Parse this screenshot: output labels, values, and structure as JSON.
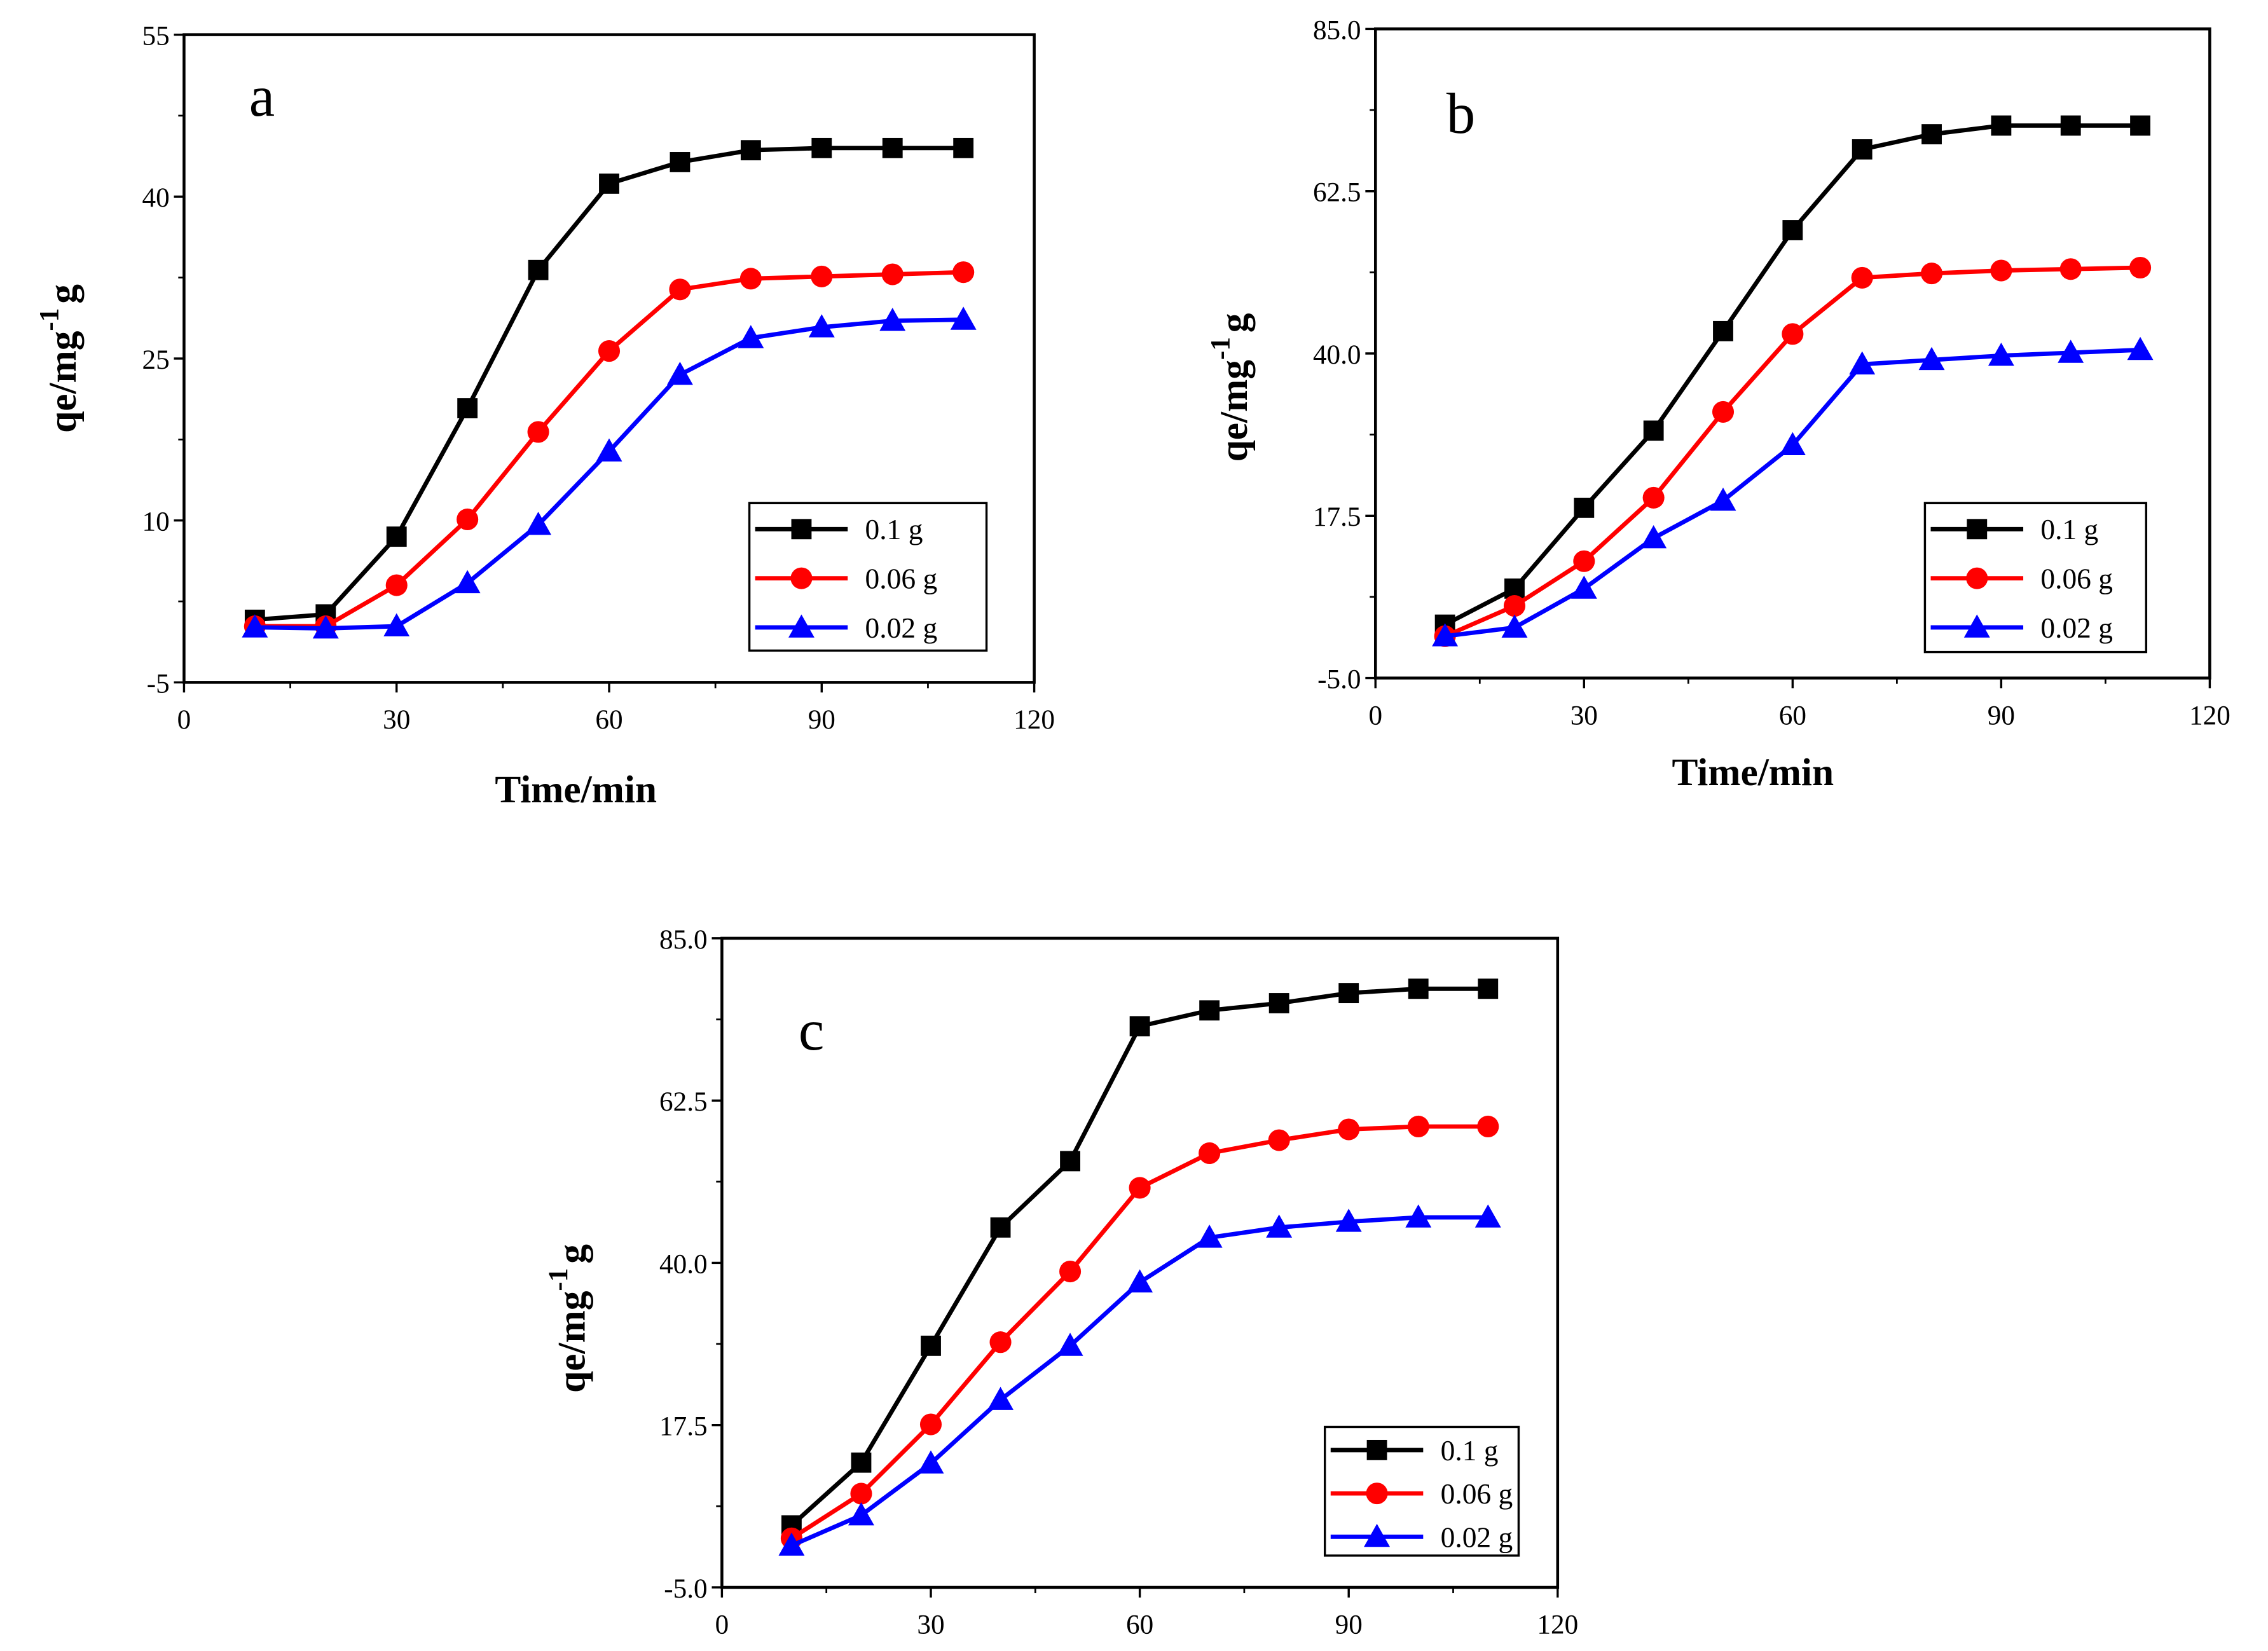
{
  "chart_data": [
    {
      "type": "line",
      "panel_label": "a",
      "xlabel": "Time/min",
      "ylabel": {
        "base": "qe/mg",
        "sup": "-1",
        "tail": "g"
      },
      "xlim": [
        0,
        120
      ],
      "ylim": [
        -5,
        55
      ],
      "xticks": [
        "0",
        "30",
        "60",
        "90",
        "120"
      ],
      "xtick_values": [
        0,
        30,
        60,
        90,
        120
      ],
      "yticks": [
        "-5",
        "10",
        "25",
        "40",
        "55"
      ],
      "ytick_values": [
        -5,
        10,
        25,
        40,
        55
      ],
      "legend_position": "bottom-right",
      "x": [
        10,
        20,
        30,
        40,
        50,
        60,
        70,
        80,
        90,
        100,
        110
      ],
      "series": [
        {
          "name": "0.1 g",
          "color": "#000000",
          "marker": "square",
          "values": [
            0.8,
            1.3,
            8.5,
            20.4,
            33.2,
            41.2,
            43.2,
            44.3,
            44.5,
            44.5,
            44.5
          ]
        },
        {
          "name": "0.06 g",
          "color": "#ff0000",
          "marker": "circle",
          "values": [
            0.2,
            0.2,
            4.0,
            10.1,
            18.2,
            25.7,
            31.4,
            32.4,
            32.6,
            32.8,
            33.0
          ]
        },
        {
          "name": "0.02 g",
          "color": "#0000ff",
          "marker": "triangle",
          "values": [
            0.1,
            0.0,
            0.2,
            4.2,
            9.6,
            16.4,
            23.5,
            26.9,
            27.9,
            28.5,
            28.6
          ]
        }
      ]
    },
    {
      "type": "line",
      "panel_label": "b",
      "xlabel": "Time/min",
      "ylabel": {
        "base": "qe/mg",
        "sup": "-1",
        "tail": "g"
      },
      "xlim": [
        0,
        120
      ],
      "ylim": [
        -5,
        85
      ],
      "xticks": [
        "0",
        "30",
        "60",
        "90",
        "120"
      ],
      "xtick_values": [
        0,
        30,
        60,
        90,
        120
      ],
      "yticks": [
        "-5.0",
        "17.5",
        "40.0",
        "62.5",
        "85.0"
      ],
      "ytick_values": [
        -5,
        17.5,
        40,
        62.5,
        85
      ],
      "legend_position": "bottom-right",
      "x": [
        10,
        20,
        30,
        40,
        50,
        60,
        70,
        80,
        90,
        100,
        110
      ],
      "series": [
        {
          "name": "0.1 g",
          "color": "#000000",
          "marker": "square",
          "values": [
            2.4,
            7.4,
            18.6,
            29.3,
            43.1,
            57.1,
            68.3,
            70.4,
            71.6,
            71.6,
            71.6
          ]
        },
        {
          "name": "0.06 g",
          "color": "#ff0000",
          "marker": "circle",
          "values": [
            0.8,
            5.0,
            11.2,
            20.0,
            31.9,
            42.7,
            50.5,
            51.1,
            51.5,
            51.7,
            51.9
          ]
        },
        {
          "name": "0.02 g",
          "color": "#0000ff",
          "marker": "triangle",
          "values": [
            0.8,
            2.0,
            7.4,
            14.4,
            19.6,
            27.3,
            38.5,
            39.1,
            39.7,
            40.1,
            40.5
          ]
        }
      ]
    },
    {
      "type": "line",
      "panel_label": "c",
      "xlabel": "",
      "ylabel": {
        "base": "qe/mg",
        "sup": "-1",
        "tail": "g"
      },
      "xlim": [
        0,
        120
      ],
      "ylim": [
        -5,
        85
      ],
      "xticks": [
        "0",
        "30",
        "60",
        "90",
        "120"
      ],
      "xtick_values": [
        0,
        30,
        60,
        90,
        120
      ],
      "yticks": [
        "-5.0",
        "17.5",
        "40.0",
        "62.5",
        "85.0"
      ],
      "ytick_values": [
        -5,
        17.5,
        40,
        62.5,
        85
      ],
      "legend_position": "bottom-right",
      "x": [
        10,
        20,
        30,
        40,
        50,
        60,
        70,
        80,
        90,
        100,
        110
      ],
      "series": [
        {
          "name": "0.1 g",
          "color": "#000000",
          "marker": "square",
          "values": [
            3.6,
            12.3,
            28.5,
            44.9,
            54.1,
            72.8,
            75.0,
            76.0,
            77.4,
            78.0,
            78.0
          ]
        },
        {
          "name": "0.06 g",
          "color": "#ff0000",
          "marker": "circle",
          "values": [
            1.8,
            8.0,
            17.6,
            29.0,
            38.8,
            50.4,
            55.2,
            57.0,
            58.5,
            58.9,
            58.9
          ]
        },
        {
          "name": "0.02 g",
          "color": "#0000ff",
          "marker": "triangle",
          "values": [
            0.8,
            5.0,
            12.2,
            21.0,
            28.5,
            37.3,
            43.5,
            44.9,
            45.7,
            46.3,
            46.3
          ]
        }
      ]
    }
  ]
}
